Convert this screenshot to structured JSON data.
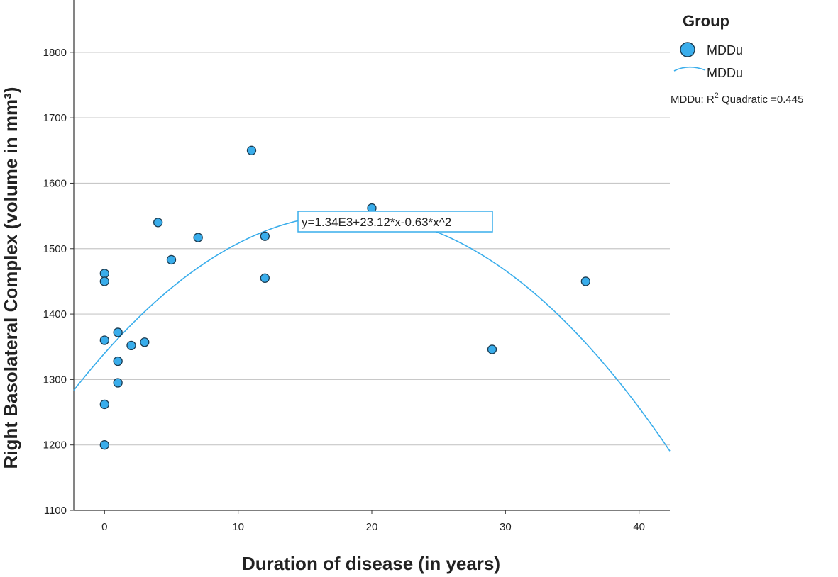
{
  "chart_data": {
    "type": "scatter",
    "xlabel": "Duration of disease (in years)",
    "ylabel": "Right Basolateral Complex (volume in mm³)",
    "xlim": [
      -2.3,
      42.3
    ],
    "ylim": [
      1100,
      1880
    ],
    "x_ticks": [
      0,
      10,
      20,
      30,
      40
    ],
    "y_ticks": [
      1100,
      1200,
      1300,
      1400,
      1500,
      1600,
      1700,
      1800
    ],
    "grid": "horizontal",
    "series": [
      {
        "name": "MDDu",
        "kind": "points",
        "color": "#39ADEB",
        "points": [
          {
            "x": 0,
            "y": 1462
          },
          {
            "x": 0,
            "y": 1450
          },
          {
            "x": 0,
            "y": 1360
          },
          {
            "x": 0,
            "y": 1262
          },
          {
            "x": 0,
            "y": 1200
          },
          {
            "x": 1,
            "y": 1372
          },
          {
            "x": 1,
            "y": 1328
          },
          {
            "x": 1,
            "y": 1295
          },
          {
            "x": 2,
            "y": 1352
          },
          {
            "x": 3,
            "y": 1357
          },
          {
            "x": 4,
            "y": 1540
          },
          {
            "x": 5,
            "y": 1483
          },
          {
            "x": 7,
            "y": 1517
          },
          {
            "x": 11,
            "y": 1650
          },
          {
            "x": 12,
            "y": 1519
          },
          {
            "x": 12,
            "y": 1455
          },
          {
            "x": 20,
            "y": 1562
          },
          {
            "x": 29,
            "y": 1346
          },
          {
            "x": 36,
            "y": 1450
          }
        ]
      },
      {
        "name": "MDDu",
        "kind": "fit",
        "model": "quadratic",
        "color": "#39ADEB",
        "coefficients": {
          "intercept": 1340,
          "linear": 23.12,
          "quadratic": -0.63
        }
      }
    ],
    "annotation": "y=1.34E3+23.12*x-0.63*x^2",
    "legend": {
      "title": "Group",
      "position": "top-right",
      "items": [
        {
          "label": "MDDu",
          "marker": "circle"
        },
        {
          "label": "MDDu",
          "marker": "line"
        }
      ],
      "r2_prefix": "MDDu: R",
      "r2_sup": "2",
      "r2_suffix": " Quadratic =0.445"
    }
  }
}
